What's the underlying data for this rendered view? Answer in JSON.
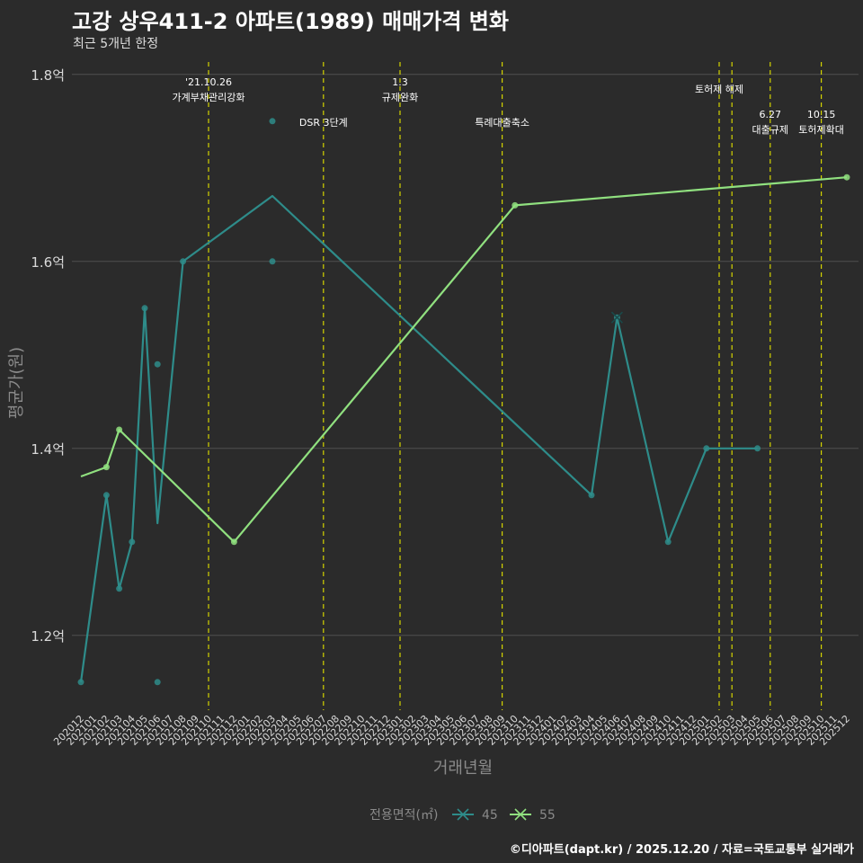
{
  "header": {
    "title": "고강 상우411-2 아파트(1989) 매매가격 변화",
    "subtitle": "최근 5개년 한정"
  },
  "caption": "©디아파트(dapt.kr) / 2025.12.20 / 자료=국토교통부 실거래가",
  "colors": {
    "background": "#2b2b2b",
    "grid": "#4f4f4f",
    "event_line": "#d4d400",
    "series_45": "#2e8c8a",
    "series_55": "#90e07f",
    "axis_text": "#d9d9d9",
    "axis_title": "#8a8a8a"
  },
  "chart_data": {
    "type": "line",
    "title": "고강 상우411-2 아파트(1989) 매매가격 변화",
    "xlabel": "거래년월",
    "ylabel": "평균가(원)",
    "ylim": [
      1.12,
      1.82
    ],
    "y_ticks": [
      1.2,
      1.4,
      1.6,
      1.8
    ],
    "y_tick_labels": [
      "1.2억",
      "1.4억",
      "1.6억",
      "1.8억"
    ],
    "categories": [
      "202012",
      "202101",
      "202102",
      "202103",
      "202104",
      "202105",
      "202106",
      "202107",
      "202108",
      "202109",
      "202110",
      "202111",
      "202112",
      "202201",
      "202202",
      "202203",
      "202204",
      "202205",
      "202206",
      "202207",
      "202208",
      "202209",
      "202210",
      "202211",
      "202212",
      "202301",
      "202302",
      "202303",
      "202304",
      "202305",
      "202306",
      "202307",
      "202308",
      "202309",
      "202310",
      "202311",
      "202312",
      "202401",
      "202402",
      "202403",
      "202404",
      "202405",
      "202406",
      "202407",
      "202408",
      "202409",
      "202410",
      "202411",
      "202412",
      "202501",
      "202502",
      "202503",
      "202504",
      "202505",
      "202506",
      "202507",
      "202508",
      "202509",
      "202510",
      "202511",
      "202512"
    ],
    "legend_title": "전용면적(㎡)",
    "series": [
      {
        "name": "45",
        "line_points": [
          [
            "202012",
            1.15
          ],
          [
            "202102",
            1.35
          ],
          [
            "202103",
            1.25
          ],
          [
            "202104",
            1.3
          ],
          [
            "202105",
            1.55
          ],
          [
            "202106",
            1.32
          ],
          [
            "202108",
            1.6
          ],
          [
            "202203",
            1.67
          ],
          [
            "202404",
            1.35
          ],
          [
            "202406",
            1.54
          ],
          [
            "202410",
            1.3
          ],
          [
            "202501",
            1.4
          ],
          [
            "202505",
            1.4
          ]
        ],
        "scatter_points": [
          [
            "202012",
            1.15
          ],
          [
            "202102",
            1.35
          ],
          [
            "202103",
            1.25
          ],
          [
            "202104",
            1.3
          ],
          [
            "202105",
            1.55
          ],
          [
            "202106",
            1.49
          ],
          [
            "202106",
            1.15
          ],
          [
            "202108",
            1.6
          ],
          [
            "202203",
            1.75
          ],
          [
            "202203",
            1.6
          ],
          [
            "202404",
            1.35
          ],
          [
            "202406",
            1.54
          ],
          [
            "202410",
            1.3
          ],
          [
            "202501",
            1.4
          ],
          [
            "202505",
            1.4
          ]
        ]
      },
      {
        "name": "55",
        "line_points": [
          [
            "202012",
            1.37
          ],
          [
            "202102",
            1.38
          ],
          [
            "202103",
            1.42
          ],
          [
            "202112",
            1.3
          ],
          [
            "202310",
            1.66
          ],
          [
            "202512",
            1.69
          ]
        ],
        "scatter_points": [
          [
            "202102",
            1.38
          ],
          [
            "202103",
            1.42
          ],
          [
            "202112",
            1.3
          ],
          [
            "202310",
            1.66
          ],
          [
            "202512",
            1.69
          ]
        ]
      }
    ],
    "events": [
      {
        "month": "202110",
        "label": "'21.10.26",
        "label2": "가계부채관리강화",
        "level": 1
      },
      {
        "month": "202207",
        "label": "DSR 3단계",
        "label2": "",
        "level": 3
      },
      {
        "month": "202301",
        "label": "1.3",
        "label2": "규제완화",
        "level": 1
      },
      {
        "month": "202309",
        "label": "특례대출축소",
        "label2": "",
        "level": 3
      },
      {
        "month": "202502",
        "label": "토허제 해제",
        "label2": "",
        "level": 2
      },
      {
        "month": "202503",
        "label": "",
        "label2": "",
        "level": 0
      },
      {
        "month": "202506",
        "label": "6.27",
        "label2": "대출규제",
        "level": 4
      },
      {
        "month": "202510",
        "label": "10.15",
        "label2": "토허제확대",
        "level": 4
      }
    ]
  }
}
